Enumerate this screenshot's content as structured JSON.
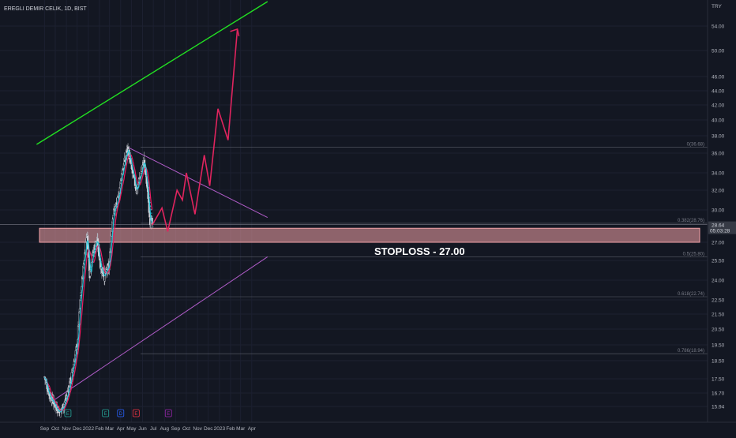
{
  "header": {
    "title": "EREGLI DEMIR CELIK, 1D, BIST"
  },
  "price_axis": {
    "currency": "TRY",
    "ticks": [
      "54.00",
      "50.00",
      "46.00",
      "44.00",
      "42.00",
      "40.00",
      "38.00",
      "36.00",
      "34.00",
      "32.00",
      "30.00",
      "27.00",
      "25.50",
      "24.00",
      "22.50",
      "21.50",
      "20.50",
      "19.50",
      "18.50",
      "17.50",
      "16.70",
      "15.94"
    ],
    "last_price": "28.64",
    "countdown": "05:03:28"
  },
  "time_axis": {
    "ticks": [
      "Sep",
      "Oct",
      "Nov",
      "Dec",
      "2022",
      "Feb",
      "Mar",
      "Apr",
      "May",
      "Jun",
      "Jul",
      "Aug",
      "Sep",
      "Oct",
      "Nov",
      "Dec",
      "2023",
      "Feb",
      "Mar",
      "Apr"
    ]
  },
  "fib_levels": [
    {
      "label": "0(36.68)"
    },
    {
      "label": "0.382(28.76)"
    },
    {
      "label": "0.5(25.80)"
    },
    {
      "label": "0.618(22.74)"
    },
    {
      "label": "0.786(18.94)"
    }
  ],
  "annotation": {
    "stoploss_text": "STOPLOSS - 27.00"
  },
  "event_markers": [
    {
      "letter": "E",
      "color": "#26a69a"
    },
    {
      "letter": "E",
      "color": "#26a69a"
    },
    {
      "letter": "D",
      "color": "#2962ff"
    },
    {
      "letter": "E",
      "color": "#f23645"
    },
    {
      "letter": "E",
      "color": "#9c27b0"
    }
  ],
  "colors": {
    "background": "#131722",
    "up_candle": "#d1d4dc",
    "down_candle": "#d1d4dc",
    "ma_fast": "#26c6da",
    "ma_slow": "#e91e63",
    "green_channel": "#22e022",
    "purple_lines": "#b05cc8",
    "projection": "#e0245e",
    "zone_fill": "#f4a3a8"
  },
  "chart_data": {
    "type": "candlestick",
    "symbol": "EREGLI DEMIR CELIK",
    "interval": "1D",
    "exchange": "BIST",
    "currency": "TRY",
    "ylim": [
      15.5,
      57
    ],
    "price_path": [
      [
        "2021-09-01",
        17.6
      ],
      [
        "2021-09-15",
        16.6
      ],
      [
        "2021-10-01",
        16.0
      ],
      [
        "2021-10-15",
        15.6
      ],
      [
        "2021-11-01",
        16.4
      ],
      [
        "2021-11-15",
        17.6
      ],
      [
        "2021-12-01",
        19.5
      ],
      [
        "2021-12-10",
        22.5
      ],
      [
        "2021-12-20",
        25.5
      ],
      [
        "2021-12-28",
        27.8
      ],
      [
        "2022-01-05",
        24.5
      ],
      [
        "2022-01-15",
        26.3
      ],
      [
        "2022-01-25",
        27.2
      ],
      [
        "2022-02-05",
        25.0
      ],
      [
        "2022-02-15",
        24.3
      ],
      [
        "2022-02-28",
        25.0
      ],
      [
        "2022-03-10",
        29.5
      ],
      [
        "2022-03-25",
        31.0
      ],
      [
        "2022-04-05",
        34.0
      ],
      [
        "2022-04-15",
        35.5
      ],
      [
        "2022-04-20",
        36.6
      ],
      [
        "2022-05-01",
        34.5
      ],
      [
        "2022-05-15",
        32.0
      ],
      [
        "2022-05-25",
        33.5
      ],
      [
        "2022-06-05",
        35.3
      ],
      [
        "2022-06-15",
        32.0
      ],
      [
        "2022-06-22",
        29.0
      ],
      [
        "2022-06-28",
        28.6
      ]
    ],
    "projection": [
      [
        "2022-06-28",
        28.6
      ],
      [
        "2022-07-25",
        30.2
      ],
      [
        "2022-08-10",
        28.0
      ],
      [
        "2022-09-05",
        32.0
      ],
      [
        "2022-09-20",
        31.0
      ],
      [
        "2022-10-01",
        34.0
      ],
      [
        "2022-10-25",
        29.6
      ],
      [
        "2022-11-20",
        35.8
      ],
      [
        "2022-12-05",
        32.5
      ],
      [
        "2022-12-28",
        41.5
      ],
      [
        "2023-01-25",
        37.5
      ],
      [
        "2023-02-20",
        53.5
      ]
    ],
    "stoploss_zone": [
      27.0,
      28.3
    ],
    "stoploss": 27.0,
    "fibonacci": [
      {
        "ratio": 0,
        "price": 36.68
      },
      {
        "ratio": 0.382,
        "price": 28.76
      },
      {
        "ratio": 0.5,
        "price": 25.8
      },
      {
        "ratio": 0.618,
        "price": 22.74
      },
      {
        "ratio": 0.786,
        "price": 18.94
      }
    ]
  }
}
